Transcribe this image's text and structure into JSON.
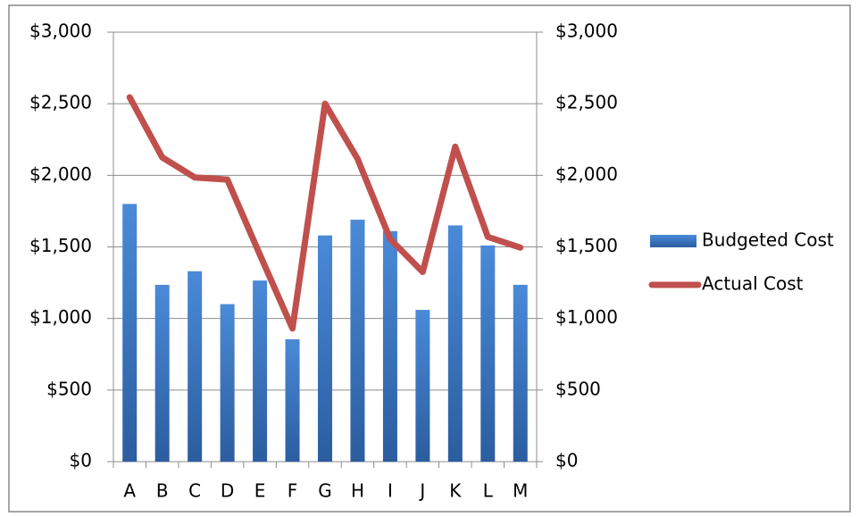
{
  "chart_data": {
    "type": "bar-line",
    "categories": [
      "A",
      "B",
      "C",
      "D",
      "E",
      "F",
      "G",
      "H",
      "I",
      "J",
      "K",
      "L",
      "M"
    ],
    "series": [
      {
        "name": "Budgeted Cost",
        "type": "bar",
        "color": "#3b78c9",
        "values": [
          1800,
          1235,
          1330,
          1100,
          1265,
          855,
          1580,
          1690,
          1610,
          1060,
          1650,
          1510,
          1235
        ]
      },
      {
        "name": "Actual Cost",
        "type": "line",
        "axis": "y2",
        "color": "#c0504d",
        "values": [
          2545,
          2125,
          1985,
          1970,
          1445,
          930,
          2500,
          2115,
          1555,
          1325,
          2200,
          1570,
          1495
        ]
      }
    ],
    "ylim": [
      0,
      3000
    ],
    "yticks": [
      {
        "value": 0,
        "label": "$0"
      },
      {
        "value": 500,
        "label": "$500"
      },
      {
        "value": 1000,
        "label": "$1,000"
      },
      {
        "value": 1500,
        "label": "$1,500"
      },
      {
        "value": 2000,
        "label": "$2,000"
      },
      {
        "value": 2500,
        "label": "$2,500"
      },
      {
        "value": 3000,
        "label": "$3,000"
      }
    ],
    "y2lim": [
      0,
      3000
    ],
    "y2ticks": [
      {
        "value": 0,
        "label": "$0"
      },
      {
        "value": 500,
        "label": "$500"
      },
      {
        "value": 1000,
        "label": "$1,000"
      },
      {
        "value": 1500,
        "label": "$1,500"
      },
      {
        "value": 2000,
        "label": "$2,000"
      },
      {
        "value": 2500,
        "label": "$2,500"
      },
      {
        "value": 3000,
        "label": "$3,000"
      }
    ],
    "grid": true,
    "legend": "right"
  }
}
